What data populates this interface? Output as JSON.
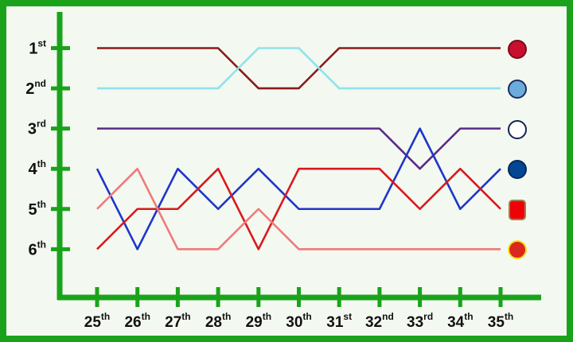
{
  "chart_data": {
    "type": "line",
    "categories": [
      "25th",
      "26th",
      "27th",
      "28th",
      "29th",
      "30th",
      "31st",
      "32nd",
      "33rd",
      "34th",
      "35th"
    ],
    "ylim": [
      7.2,
      0.1
    ],
    "yticks": [
      {
        "value": 1,
        "label": "1st"
      },
      {
        "value": 2,
        "label": "2nd"
      },
      {
        "value": 3,
        "label": "3rd"
      },
      {
        "value": 4,
        "label": "4th"
      },
      {
        "value": 5,
        "label": "5th"
      },
      {
        "value": 6,
        "label": "6th"
      }
    ],
    "series": [
      {
        "color": "#8b1a1a",
        "values": [
          1,
          1,
          1,
          1,
          2,
          2,
          1,
          1,
          1,
          1,
          1
        ]
      },
      {
        "color": "#8fe3ea",
        "values": [
          2,
          2,
          2,
          2,
          1,
          1,
          2,
          2,
          2,
          2,
          2
        ]
      },
      {
        "color": "#5b2a86",
        "values": [
          3,
          3,
          3,
          3,
          3,
          3,
          3,
          3,
          4,
          3,
          3
        ]
      },
      {
        "color": "#1f35c9",
        "values": [
          4,
          6,
          4,
          5,
          4,
          5,
          5,
          5,
          3,
          5,
          4
        ]
      },
      {
        "color": "#d9191c",
        "values": [
          6,
          5,
          5,
          4,
          6,
          4,
          4,
          4,
          5,
          4,
          5
        ]
      },
      {
        "color": "#ef7a7a",
        "values": [
          5,
          4,
          6,
          6,
          5,
          6,
          6,
          6,
          6,
          6,
          6
        ]
      }
    ]
  }
}
